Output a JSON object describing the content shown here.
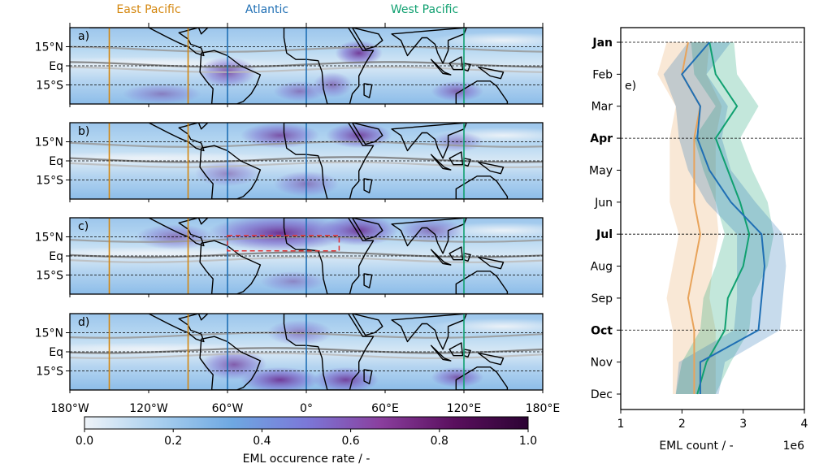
{
  "region_headers": [
    {
      "name": "East Pacific",
      "color": "#d4870f"
    },
    {
      "name": "Atlantic",
      "color": "#1f6fb4"
    },
    {
      "name": "West Pacific",
      "color": "#10a070"
    }
  ],
  "maps": {
    "panel_labels": [
      "a)",
      "b)",
      "c)",
      "d)"
    ],
    "lat_ticks": [
      "15°N",
      "Eq",
      "15°S"
    ],
    "lon_ticks": [
      "180°W",
      "120°W",
      "60°W",
      "0°",
      "60°E",
      "120°E",
      "180°E"
    ],
    "lon_range": [
      -180,
      180
    ],
    "lat_range": [
      -30,
      30
    ],
    "region_lines_lon": [
      {
        "lon": -150,
        "region": "East Pacific"
      },
      {
        "lon": -90,
        "region": "East Pacific"
      },
      {
        "lon": -60,
        "region": "Atlantic"
      },
      {
        "lon": 0,
        "region": "Atlantic"
      },
      {
        "lon": 120,
        "region": "West Pacific"
      }
    ],
    "highlight_box": {
      "panel": "c)",
      "lon": [
        -60,
        25
      ],
      "lat": [
        4,
        16
      ],
      "color": "#e03030"
    }
  },
  "colorbar": {
    "label": "EML occurence rate / -",
    "ticks": [
      "0.0",
      "0.2",
      "0.4",
      "0.6",
      "0.8",
      "1.0"
    ],
    "range": [
      0,
      1
    ],
    "colors": [
      "#eef3f8",
      "#a9cfee",
      "#6ea8e2",
      "#7b78d8",
      "#8a3f9e",
      "#5a0f5e",
      "#2c0333"
    ]
  },
  "chart_data": {
    "type": "line",
    "panel_label": "e)",
    "orientation": "horizontal",
    "categories": [
      "Jan",
      "Feb",
      "Mar",
      "Apr",
      "May",
      "Jun",
      "Jul",
      "Aug",
      "Sep",
      "Oct",
      "Nov",
      "Dec"
    ],
    "bold_categories": [
      "Jan",
      "Apr",
      "Jul",
      "Oct"
    ],
    "xlabel": "EML count / -",
    "x_multiplier": "1e6",
    "xlim": [
      1,
      4
    ],
    "xticks": [
      "1",
      "2",
      "3",
      "4"
    ],
    "series": [
      {
        "color": "#1f6fb4",
        "values": [
          2.45,
          2.0,
          2.3,
          2.25,
          2.45,
          2.8,
          3.3,
          3.35,
          3.3,
          3.25,
          2.3,
          2.3
        ],
        "lower": [
          2.1,
          1.7,
          1.9,
          1.95,
          2.1,
          2.4,
          2.9,
          2.9,
          2.9,
          2.85,
          1.95,
          1.9
        ],
        "upper": [
          2.8,
          2.4,
          2.75,
          2.65,
          2.8,
          3.2,
          3.65,
          3.7,
          3.65,
          3.6,
          2.7,
          2.6
        ]
      },
      {
        "color": "#10a070",
        "values": [
          2.45,
          2.55,
          2.9,
          2.55,
          2.75,
          2.95,
          3.1,
          3.0,
          2.75,
          2.7,
          2.4,
          2.25
        ],
        "lower": [
          2.15,
          2.2,
          2.55,
          2.2,
          2.35,
          2.55,
          2.7,
          2.55,
          2.35,
          2.3,
          2.0,
          1.9
        ],
        "upper": [
          2.85,
          2.9,
          3.25,
          2.95,
          3.15,
          3.4,
          3.5,
          3.4,
          3.15,
          3.1,
          2.8,
          2.55
        ]
      },
      {
        "color": "#e8a35a",
        "values": [
          2.1,
          2.0,
          2.3,
          2.2,
          2.2,
          2.2,
          2.3,
          2.2,
          2.1,
          2.2,
          2.2,
          2.2
        ],
        "lower": [
          1.75,
          1.6,
          1.9,
          1.8,
          1.8,
          1.8,
          1.95,
          1.85,
          1.75,
          1.85,
          1.85,
          1.85
        ],
        "upper": [
          2.45,
          2.4,
          2.65,
          2.55,
          2.55,
          2.55,
          2.6,
          2.5,
          2.45,
          2.55,
          2.55,
          2.55
        ]
      }
    ]
  }
}
